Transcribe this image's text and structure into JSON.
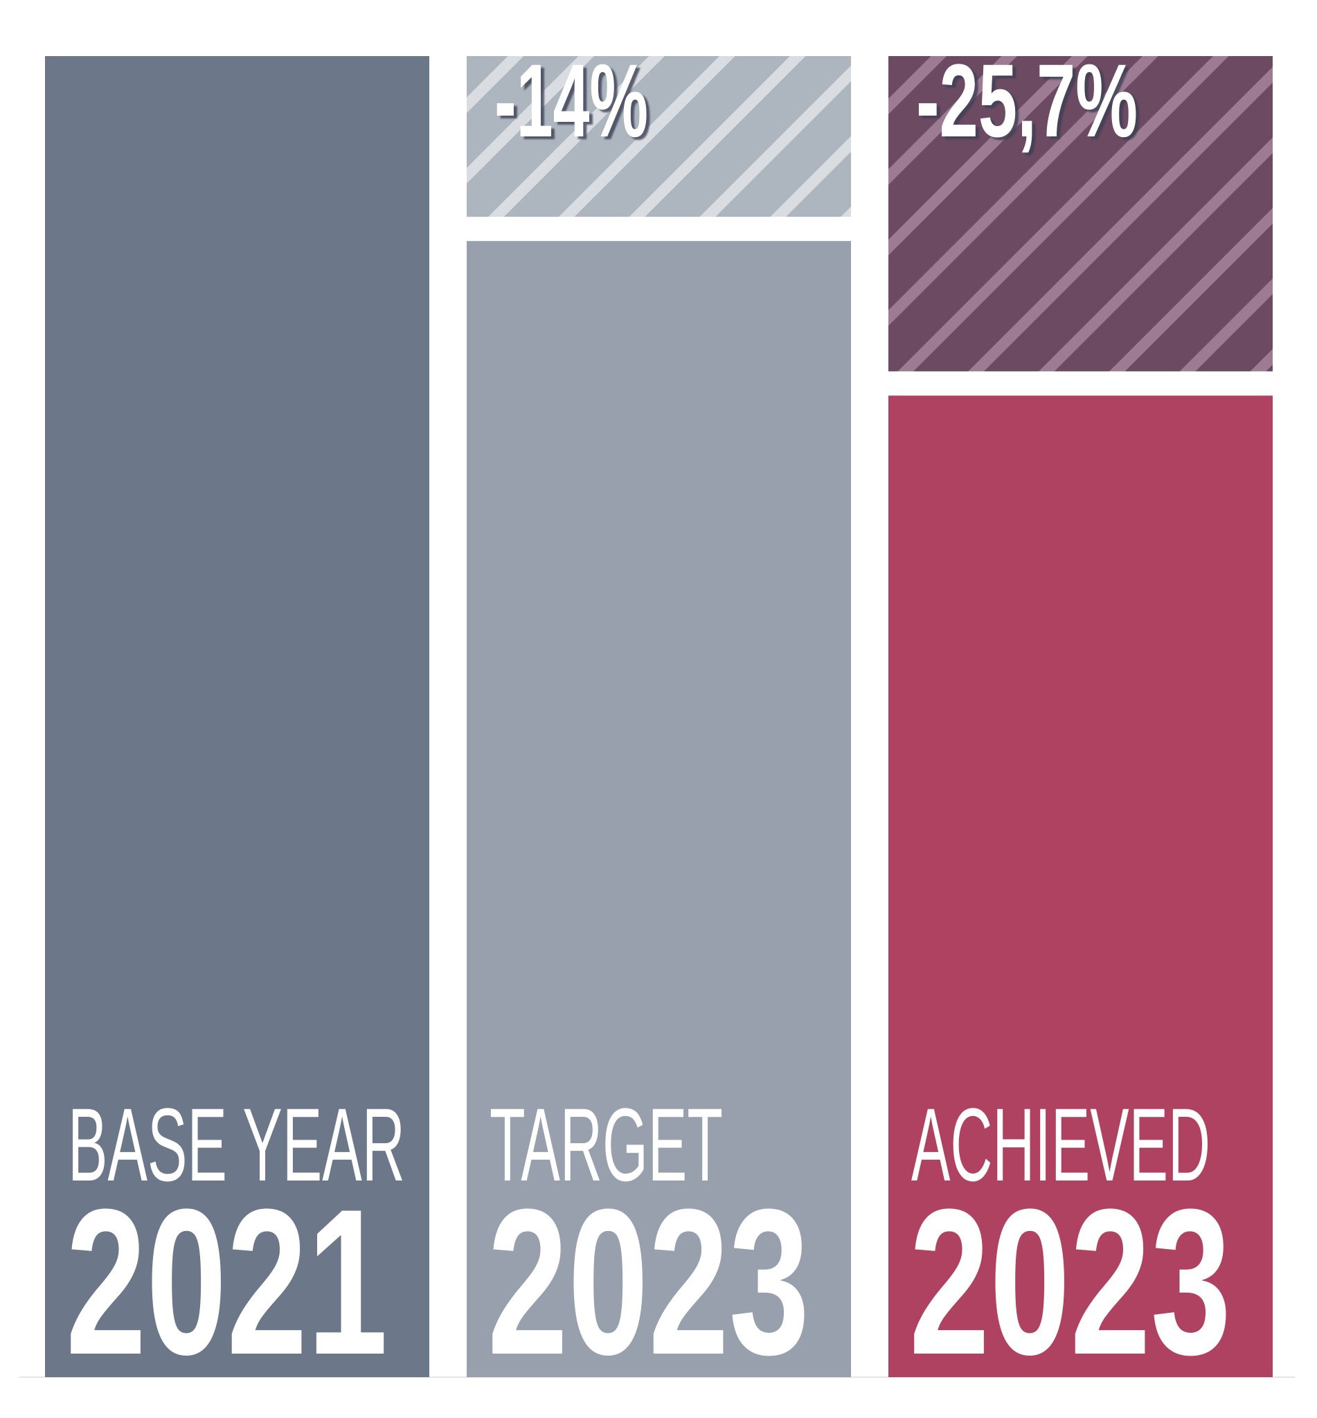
{
  "chart_data": {
    "type": "bar",
    "categories": [
      {
        "label": "BASE YEAR",
        "year": "2021"
      },
      {
        "label": "TARGET",
        "year": "2023"
      },
      {
        "label": "ACHIEVED",
        "year": "2023"
      }
    ],
    "values": [
      100,
      86,
      74.3
    ],
    "colors": [
      "#6c7889",
      "#97a0ac",
      "#b04261"
    ],
    "reductions": {
      "values": [
        null,
        -14,
        -25.7
      ],
      "value_labels": [
        null,
        "-14%",
        "-25,7%"
      ],
      "colors": [
        null,
        "#adb5bf",
        "#6b4a62"
      ],
      "stripe_colors": [
        null,
        "#d9dde2",
        "#9c7b93"
      ]
    },
    "ylim": [
      0,
      100
    ]
  }
}
